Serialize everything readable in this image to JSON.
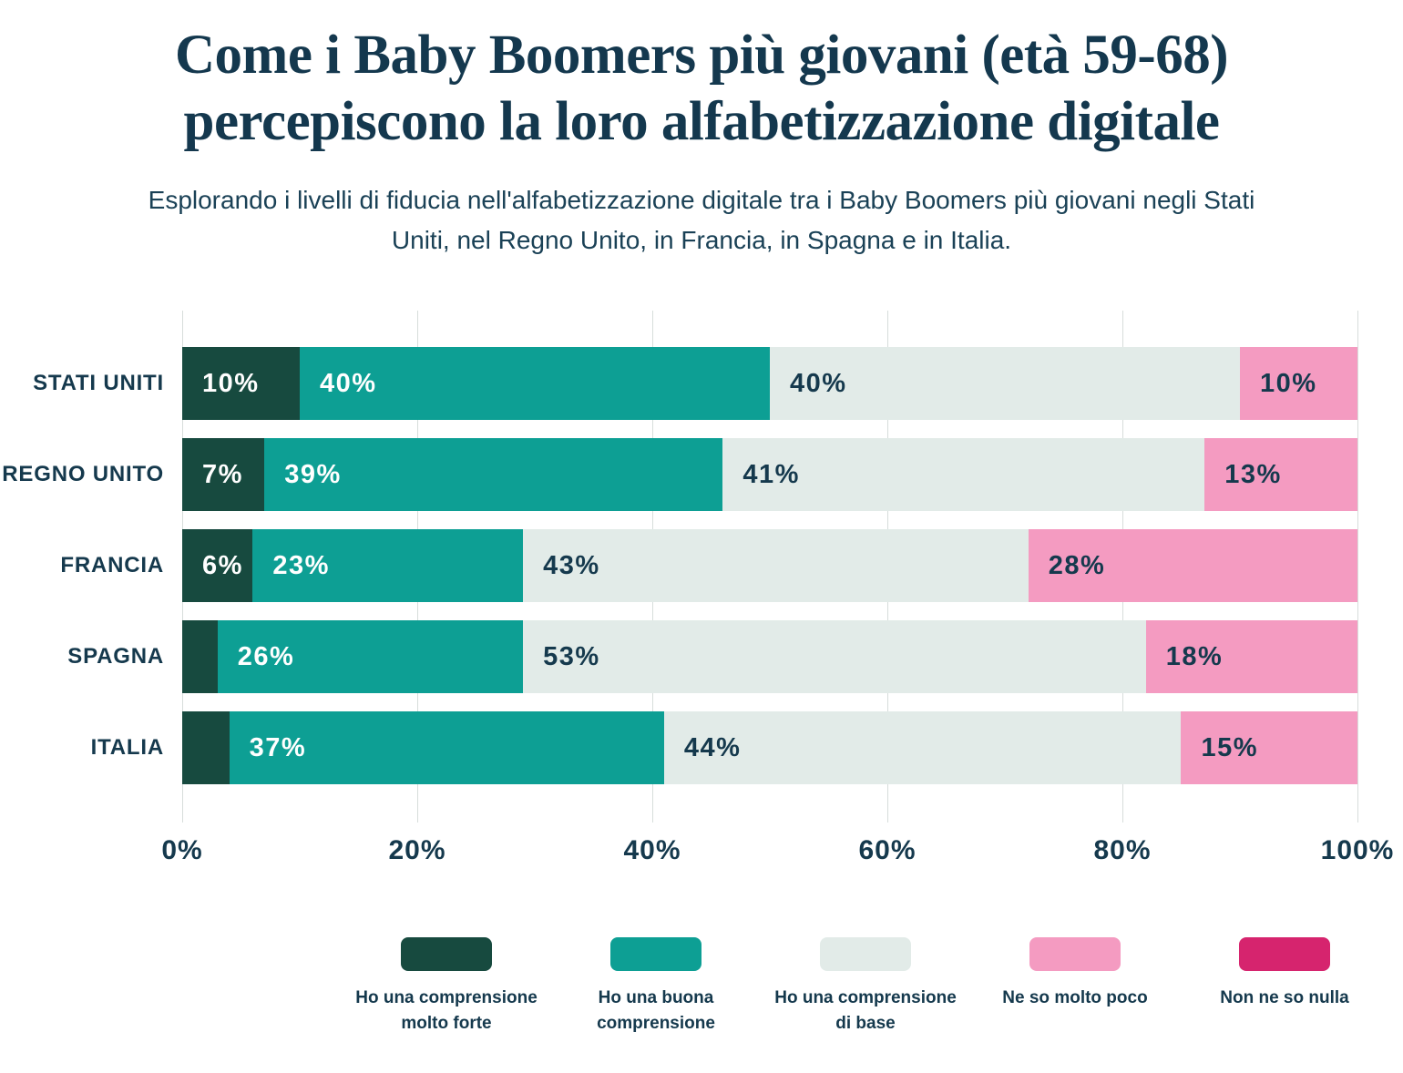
{
  "header": {
    "title_lines": [
      "Come i Baby Boomers più giovani (età 59-68)",
      "percepiscono la loro alfabetizzazione digitale"
    ],
    "subtitle": "Esplorando i livelli di fiducia nell'alfabetizzazione digitale tra i Baby Boomers più giovani negli Stati Uniti, nel Regno Unito, in Francia, in Spagna e in Italia."
  },
  "colors": {
    "text_navy": "#15394d",
    "gridline": "#d7dddb",
    "background": "#ffffff"
  },
  "chart_data": {
    "type": "bar",
    "stacked": true,
    "orientation": "horizontal",
    "title": "Come i Baby Boomers più giovani (età 59-68) percepiscono la loro alfabetizzazione digitale",
    "categories": [
      "STATI UNITI",
      "REGNO UNITO",
      "FRANCIA",
      "SPAGNA",
      "ITALIA"
    ],
    "series": [
      {
        "name": "Ho una comprensione molto forte",
        "color": "#174a3f",
        "text_color": "#ffffff",
        "values": [
          10,
          7,
          6,
          3,
          4
        ]
      },
      {
        "name": "Ho una buona comprensione",
        "color": "#0d9f94",
        "text_color": "#ffffff",
        "values": [
          40,
          39,
          23,
          26,
          37
        ]
      },
      {
        "name": "Ho una comprensione di base",
        "color": "#e2ebe8",
        "text_color": "#15394d",
        "values": [
          40,
          41,
          43,
          53,
          44
        ]
      },
      {
        "name": "Ne so molto poco",
        "color": "#f49bc1",
        "text_color": "#15394d",
        "values": [
          10,
          13,
          28,
          18,
          15
        ]
      },
      {
        "name": "Non ne so nulla",
        "color": "#d6246e",
        "text_color": "#ffffff",
        "values": [
          0,
          0,
          0,
          0,
          0
        ]
      }
    ],
    "x_ticks": [
      "0%",
      "20%",
      "40%",
      "60%",
      "80%",
      "100%"
    ],
    "xlim": [
      0,
      100
    ],
    "value_suffix": "%",
    "label_min_value": 5,
    "grid": true,
    "legend_position": "bottom"
  }
}
